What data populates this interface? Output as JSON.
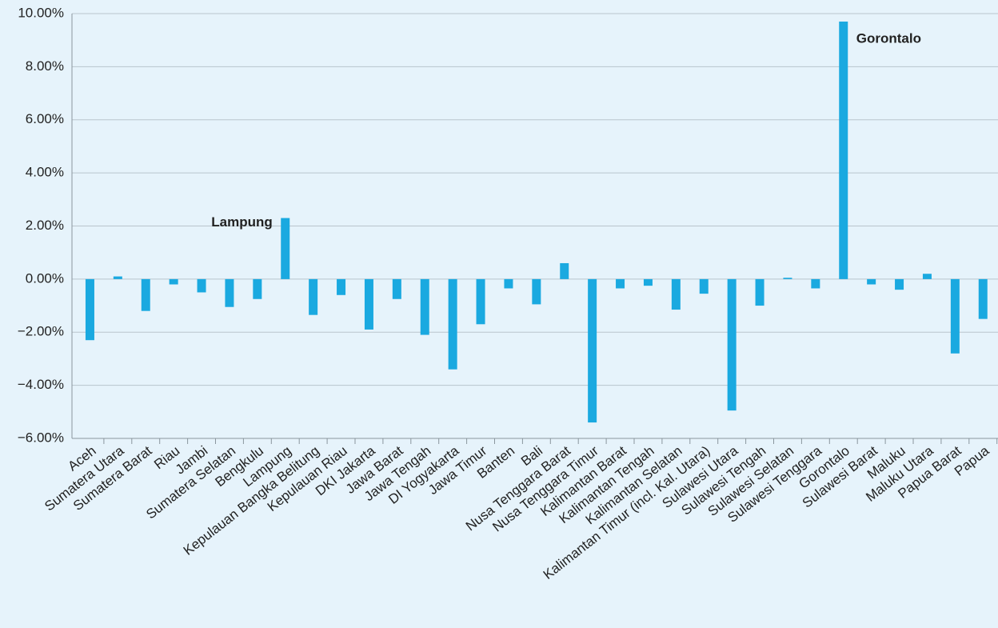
{
  "chart_data": {
    "type": "bar",
    "categories": [
      "Aceh",
      "Sumatera Utara",
      "Sumatera Barat",
      "Riau",
      "Jambi",
      "Sumatera Selatan",
      "Bengkulu",
      "Lampung",
      "Kepulauan Bangka Belitung",
      "Kepulauan Riau",
      "DKI Jakarta",
      "Jawa Barat",
      "Jawa Tengah",
      "DI Yogyakarta",
      "Jawa Timur",
      "Banten",
      "Bali",
      "Nusa Tenggara Barat",
      "Nusa Tenggara Timur",
      "Kalimantan Barat",
      "Kalimantan Tengah",
      "Kalimantan Selatan",
      "Kalimantan Timur (incl. Kal. Utara)",
      "Sulawesi Utara",
      "Sulawesi Tengah",
      "Sulawesi Selatan",
      "Sulawesi Tenggara",
      "Gorontalo",
      "Sulawesi Barat",
      "Maluku",
      "Maluku Utara",
      "Papua Barat",
      "Papua"
    ],
    "values": [
      -2.3,
      0.1,
      -1.2,
      -0.2,
      -0.5,
      -1.05,
      -0.75,
      2.3,
      -1.35,
      -0.6,
      -1.9,
      -0.75,
      -2.1,
      -3.4,
      -1.7,
      -0.35,
      -0.95,
      0.6,
      -5.4,
      -0.35,
      -0.25,
      -1.15,
      -0.55,
      -4.95,
      -1.0,
      0.05,
      -0.35,
      9.7,
      -0.2,
      -0.4,
      0.2,
      -2.8,
      -1.5
    ],
    "color": "#1aa9e0",
    "ylim": [
      -6,
      10
    ],
    "yticks": [
      {
        "value": -6,
        "label": "−6.00%"
      },
      {
        "value": -4,
        "label": "−4.00%"
      },
      {
        "value": -2,
        "label": "−2.00%"
      },
      {
        "value": 0,
        "label": "0.00%"
      },
      {
        "value": 2,
        "label": "2.00%"
      },
      {
        "value": 4,
        "label": "4.00%"
      },
      {
        "value": 6,
        "label": "6.00%"
      },
      {
        "value": 8,
        "label": "8.00%"
      },
      {
        "value": 10,
        "label": "10.00%"
      }
    ],
    "grid": true,
    "annotations": [
      "Lampung",
      "Gorontalo"
    ]
  }
}
